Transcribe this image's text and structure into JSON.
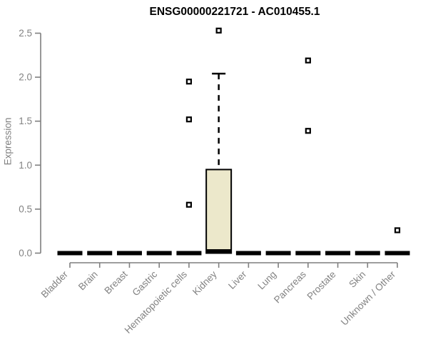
{
  "chart_data": {
    "type": "boxplot",
    "title": "ENSG00000221721 - AC010455.1",
    "ylabel": "Expression",
    "ylim": [
      0,
      2.5
    ],
    "ytick_values": [
      0,
      0.5,
      1.0,
      1.5,
      2.0,
      2.5
    ],
    "ytick_labels": [
      "0.0",
      "0.5",
      "1.0",
      "1.5",
      "2.0",
      "2.5"
    ],
    "grid": false,
    "legend": "none",
    "categories": [
      "Bladder",
      "Brain",
      "Breast",
      "Gastric",
      "Hematopoietic cells",
      "Kidney",
      "Liver",
      "Lung",
      "Pancreas",
      "Prostate",
      "Skin",
      "Unknown / Other"
    ],
    "boxes": [
      {
        "category": "Bladder",
        "whisker_low": 0,
        "q1": 0,
        "median": 0,
        "q3": 0,
        "whisker_high": 0,
        "outliers": []
      },
      {
        "category": "Brain",
        "whisker_low": 0,
        "q1": 0,
        "median": 0,
        "q3": 0,
        "whisker_high": 0,
        "outliers": []
      },
      {
        "category": "Breast",
        "whisker_low": 0,
        "q1": 0,
        "median": 0,
        "q3": 0,
        "whisker_high": 0,
        "outliers": []
      },
      {
        "category": "Gastric",
        "whisker_low": 0,
        "q1": 0,
        "median": 0,
        "q3": 0,
        "whisker_high": 0,
        "outliers": []
      },
      {
        "category": "Hematopoietic cells",
        "whisker_low": 0,
        "q1": 0,
        "median": 0,
        "q3": 0,
        "whisker_high": 0,
        "outliers": [
          0.55,
          1.52,
          1.95
        ]
      },
      {
        "category": "Kidney",
        "whisker_low": 0,
        "q1": 0,
        "median": 0.02,
        "q3": 0.95,
        "whisker_high": 2.04,
        "outliers": [
          2.53
        ]
      },
      {
        "category": "Liver",
        "whisker_low": 0,
        "q1": 0,
        "median": 0,
        "q3": 0,
        "whisker_high": 0,
        "outliers": []
      },
      {
        "category": "Lung",
        "whisker_low": 0,
        "q1": 0,
        "median": 0,
        "q3": 0,
        "whisker_high": 0,
        "outliers": []
      },
      {
        "category": "Pancreas",
        "whisker_low": 0,
        "q1": 0,
        "median": 0,
        "q3": 0,
        "whisker_high": 0,
        "outliers": [
          1.39,
          2.19
        ]
      },
      {
        "category": "Prostate",
        "whisker_low": 0,
        "q1": 0,
        "median": 0,
        "q3": 0,
        "whisker_high": 0,
        "outliers": []
      },
      {
        "category": "Skin",
        "whisker_low": 0,
        "q1": 0,
        "median": 0,
        "q3": 0,
        "whisker_high": 0,
        "outliers": []
      },
      {
        "category": "Unknown / Other",
        "whisker_low": 0,
        "q1": 0,
        "median": 0,
        "q3": 0,
        "whisker_high": 0,
        "outliers": [
          0.26
        ]
      }
    ],
    "colors": {
      "box_fill": "#ece8cb",
      "box_stroke": "#000000",
      "median": "#000000",
      "whisker": "#000000",
      "outlier_stroke": "#000000",
      "outlier_fill": "#ffffff",
      "axis": "#7f7f7f",
      "tick_label": "#828282",
      "title": "#000000",
      "background": "#ffffff"
    }
  }
}
